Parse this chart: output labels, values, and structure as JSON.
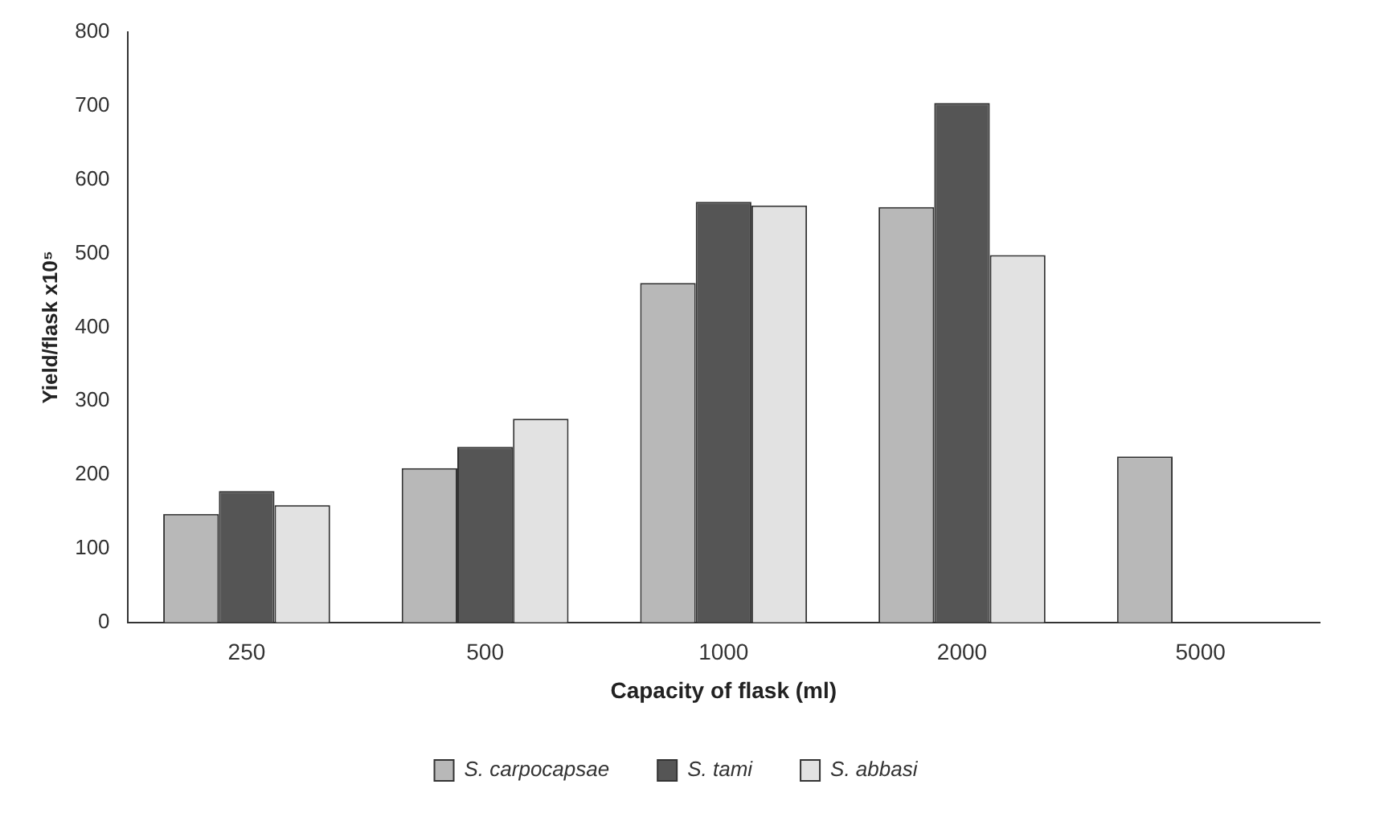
{
  "chart_data": {
    "type": "bar",
    "xlabel": "Capacity of flask (ml)",
    "ylabel": "Yield/flask x10⁵",
    "categories": [
      "250",
      "500",
      "1000",
      "2000",
      "5000"
    ],
    "series": [
      {
        "name": "S. carpocapsae",
        "color": "#b8b8b8",
        "values": [
          147,
          209,
          460,
          563,
          225
        ]
      },
      {
        "name": "S. tami",
        "color": "#555555",
        "values": [
          178,
          238,
          570,
          704,
          null
        ]
      },
      {
        "name": "S. abbasi",
        "color": "#e2e2e2",
        "values": [
          159,
          276,
          565,
          498,
          null
        ]
      }
    ],
    "ylim": [
      0,
      800
    ],
    "yticks": [
      0,
      100,
      200,
      300,
      400,
      500,
      600,
      700,
      800
    ],
    "grid": false,
    "legend": "bottom"
  }
}
